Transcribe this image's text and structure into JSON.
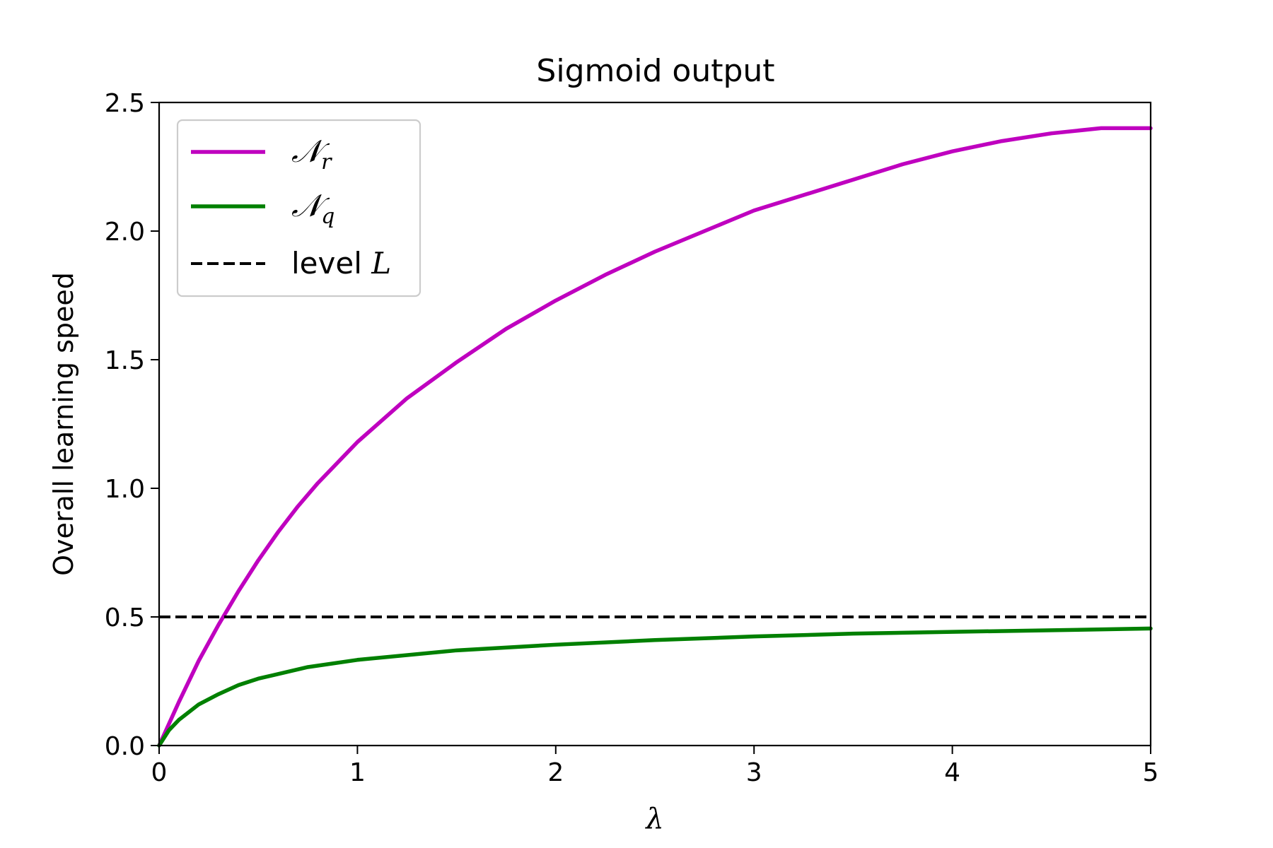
{
  "chart_data": {
    "type": "line",
    "title": "Sigmoid output",
    "xlabel": "λ",
    "ylabel": "Overall learning speed",
    "xlim": [
      0,
      5
    ],
    "ylim": [
      0,
      2.5
    ],
    "x_ticks": [
      0,
      1,
      2,
      3,
      4,
      5
    ],
    "x_tick_labels": [
      "0",
      "1",
      "2",
      "3",
      "4",
      "5"
    ],
    "y_ticks": [
      0,
      0.5,
      1.0,
      1.5,
      2.0,
      2.5
    ],
    "y_tick_labels": [
      "0.0",
      "0.5",
      "1.0",
      "1.5",
      "2.0",
      "2.5"
    ],
    "grid": false,
    "legend_position": "top-left",
    "series": [
      {
        "name": "N_r",
        "legend_symbol": "𝒩",
        "legend_subscript": "r",
        "color": "#bf00bf",
        "style": "solid",
        "x": [
          0,
          0.1,
          0.2,
          0.3,
          0.4,
          0.5,
          0.6,
          0.7,
          0.8,
          0.9,
          1.0,
          1.25,
          1.5,
          1.75,
          2.0,
          2.25,
          2.5,
          2.75,
          3.0,
          3.25,
          3.5,
          3.75,
          4.0,
          4.25,
          4.5,
          4.75,
          5.0
        ],
        "y": [
          0.0,
          0.17,
          0.33,
          0.47,
          0.6,
          0.72,
          0.83,
          0.93,
          1.02,
          1.1,
          1.18,
          1.35,
          1.49,
          1.62,
          1.73,
          1.83,
          1.92,
          2.0,
          2.08,
          2.14,
          2.2,
          2.26,
          2.31,
          2.35,
          2.38,
          2.4,
          2.4
        ]
      },
      {
        "name": "N_q",
        "legend_symbol": "𝒩",
        "legend_subscript": "q",
        "color": "#008000",
        "style": "solid",
        "x": [
          0,
          0.05,
          0.1,
          0.2,
          0.3,
          0.4,
          0.5,
          0.75,
          1.0,
          1.5,
          2.0,
          2.5,
          3.0,
          3.5,
          4.0,
          4.5,
          5.0
        ],
        "y": [
          0.0,
          0.06,
          0.1,
          0.16,
          0.2,
          0.235,
          0.26,
          0.305,
          0.333,
          0.37,
          0.392,
          0.41,
          0.424,
          0.435,
          0.442,
          0.448,
          0.455
        ]
      },
      {
        "name": "level L",
        "legend_text": "level ",
        "legend_italic": "L",
        "color": "#000000",
        "style": "dashed",
        "x": [
          0,
          5
        ],
        "y": [
          0.5,
          0.5
        ]
      }
    ]
  }
}
